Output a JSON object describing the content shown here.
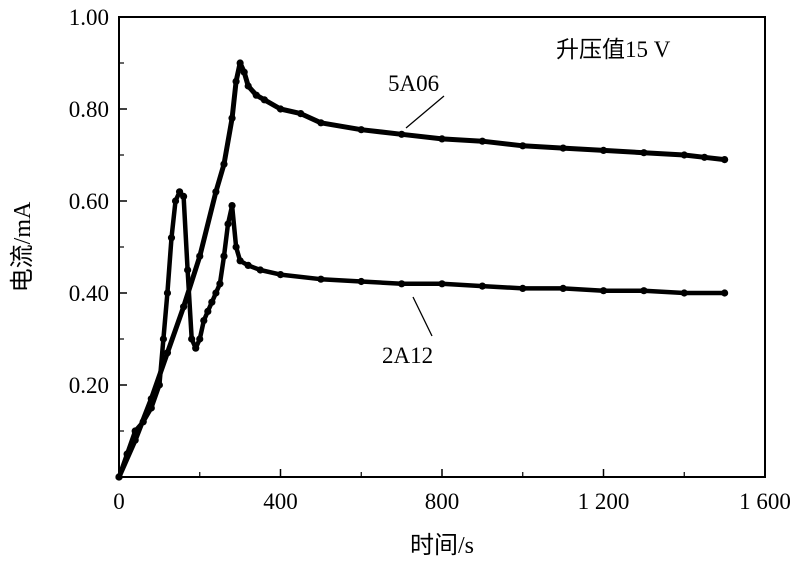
{
  "chart_data": {
    "type": "line",
    "title": "",
    "annotation": "升压值15 V",
    "xlabel": "时间/s",
    "ylabel": "电流/mA",
    "xlim": [
      0,
      1600
    ],
    "ylim": [
      0,
      1.0
    ],
    "xticks": [
      0,
      400,
      800,
      1200,
      1600
    ],
    "xtick_labels": [
      "0",
      "400",
      "800",
      "1 200",
      "1 600"
    ],
    "yticks": [
      0.2,
      0.4,
      0.6,
      0.8,
      1.0
    ],
    "ytick_labels": [
      "0.20",
      "0.40",
      "0.60",
      "0.80",
      "1.00"
    ],
    "grid": false,
    "series": [
      {
        "name": "5A06",
        "x": [
          0,
          40,
          80,
          120,
          160,
          200,
          240,
          260,
          280,
          290,
          300,
          310,
          320,
          340,
          360,
          400,
          450,
          500,
          600,
          700,
          800,
          900,
          1000,
          1100,
          1200,
          1300,
          1400,
          1450,
          1500
        ],
        "values": [
          0.0,
          0.08,
          0.17,
          0.27,
          0.37,
          0.48,
          0.62,
          0.68,
          0.78,
          0.86,
          0.9,
          0.88,
          0.85,
          0.83,
          0.82,
          0.8,
          0.79,
          0.77,
          0.755,
          0.745,
          0.735,
          0.73,
          0.72,
          0.715,
          0.71,
          0.705,
          0.7,
          0.695,
          0.69
        ]
      },
      {
        "name": "2A12",
        "x": [
          0,
          20,
          40,
          60,
          80,
          100,
          110,
          120,
          130,
          140,
          150,
          160,
          170,
          180,
          190,
          200,
          210,
          220,
          230,
          240,
          250,
          260,
          270,
          280,
          290,
          300,
          320,
          350,
          400,
          500,
          600,
          700,
          800,
          900,
          1000,
          1100,
          1200,
          1300,
          1400,
          1500
        ],
        "values": [
          0.0,
          0.05,
          0.1,
          0.12,
          0.15,
          0.2,
          0.3,
          0.4,
          0.52,
          0.6,
          0.62,
          0.61,
          0.45,
          0.3,
          0.28,
          0.3,
          0.34,
          0.36,
          0.38,
          0.4,
          0.42,
          0.48,
          0.55,
          0.59,
          0.5,
          0.47,
          0.46,
          0.45,
          0.44,
          0.43,
          0.425,
          0.42,
          0.42,
          0.415,
          0.41,
          0.41,
          0.405,
          0.405,
          0.4,
          0.4
        ]
      }
    ]
  }
}
